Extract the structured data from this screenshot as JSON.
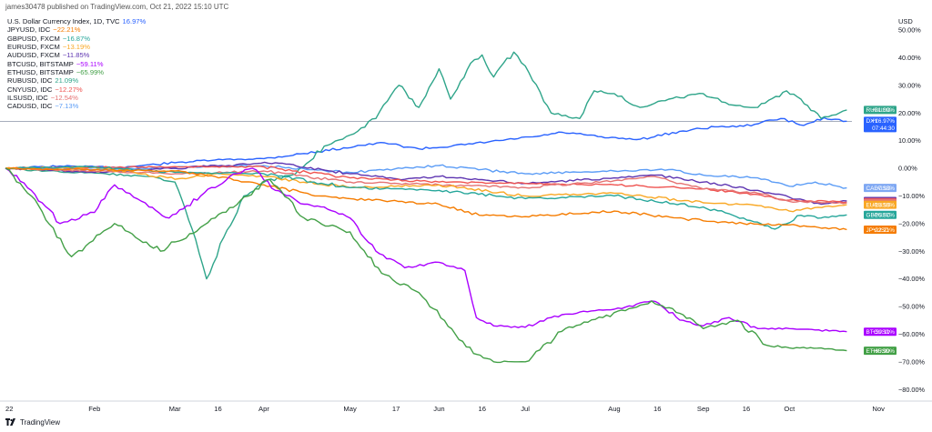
{
  "header": {
    "publish_note": "james30478 published on TradingView.com, Oct 21, 2022 15:10 UTC"
  },
  "footer": {
    "brand": "TradingView"
  },
  "chart_data": {
    "type": "line",
    "title": "",
    "unit_label": "USD",
    "y_axis_side": "right",
    "y_tick_format": "percent",
    "ylim": [
      -85,
      55
    ],
    "y_ticks": [
      50,
      40,
      30,
      20,
      10,
      0,
      -10,
      -20,
      -30,
      -40,
      -50,
      -60,
      -70,
      -80
    ],
    "x_domain": [
      "2022-01-01",
      "2022-10-31"
    ],
    "x_ticks": [
      {
        "label": "22",
        "date": "2022-01-01"
      },
      {
        "label": "Feb",
        "date": "2022-02-01"
      },
      {
        "label": "Mar",
        "date": "2022-03-01"
      },
      {
        "label": "16",
        "date": "2022-03-16"
      },
      {
        "label": "Apr",
        "date": "2022-04-01"
      },
      {
        "label": "May",
        "date": "2022-05-01"
      },
      {
        "label": "17",
        "date": "2022-05-17"
      },
      {
        "label": "Jun",
        "date": "2022-06-01"
      },
      {
        "label": "16",
        "date": "2022-06-16"
      },
      {
        "label": "Jul",
        "date": "2022-07-01"
      },
      {
        "label": "Aug",
        "date": "2022-08-01"
      },
      {
        "label": "16",
        "date": "2022-08-16"
      },
      {
        "label": "Sep",
        "date": "2022-09-01"
      },
      {
        "label": "16",
        "date": "2022-09-16"
      },
      {
        "label": "Oct",
        "date": "2022-10-01"
      },
      {
        "label": "Nov",
        "date": "2022-11-01"
      }
    ],
    "grid": false,
    "legend_position": "top-left",
    "legend": [
      {
        "name": "U.S. Dollar Currency Index, 1D, TVC",
        "value": "16.97%",
        "color": "#2962ff"
      },
      {
        "name": "JPYUSD, IDC",
        "value": "−22.21%",
        "color": "#f57c00"
      },
      {
        "name": "GBPUSD, FXCM",
        "value": "−16.87%",
        "color": "#26a69a"
      },
      {
        "name": "EURUSD, FXCM",
        "value": "−13.19%",
        "color": "#f9a825"
      },
      {
        "name": "AUDUSD, FXCM",
        "value": "−11.85%",
        "color": "#5e35b1"
      },
      {
        "name": "BTCUSD, BITSTAMP",
        "value": "−59.11%",
        "color": "#aa00ff"
      },
      {
        "name": "ETHUSD, BITSTAMP",
        "value": "−65.99%",
        "color": "#43a047"
      },
      {
        "name": "RUBUSD, IDC",
        "value": "21.09%",
        "color": "#2fa58a"
      },
      {
        "name": "CNYUSD, IDC",
        "value": "−12.27%",
        "color": "#ef5350"
      },
      {
        "name": "ILSUSD, IDC",
        "value": "−12.54%",
        "color": "#e57373"
      },
      {
        "name": "CADUSD, IDC",
        "value": "−7.13%",
        "color": "#5b9cf6"
      }
    ],
    "annotations": [
      {
        "type": "horizontal-line",
        "y": 16.97,
        "color": "#8a93a6"
      }
    ],
    "series": [
      {
        "id": "dxy",
        "color": "#2962ff",
        "x": [
          "2022-01-01",
          "2022-01-20",
          "2022-02-10",
          "2022-03-01",
          "2022-03-15",
          "2022-04-01",
          "2022-04-20",
          "2022-05-05",
          "2022-05-13",
          "2022-05-25",
          "2022-06-10",
          "2022-06-22",
          "2022-07-05",
          "2022-07-14",
          "2022-07-30",
          "2022-08-10",
          "2022-08-25",
          "2022-09-05",
          "2022-09-15",
          "2022-09-28",
          "2022-10-06",
          "2022-10-13",
          "2022-10-21"
        ],
        "y": [
          0,
          0.8,
          0.3,
          2.0,
          3.0,
          3.5,
          6.0,
          8.3,
          9.2,
          7.0,
          8.5,
          10.0,
          11.5,
          13.0,
          11.0,
          10.5,
          13.5,
          15.0,
          15.2,
          18.0,
          15.5,
          18.3,
          17.0
        ]
      },
      {
        "id": "rubusd",
        "color": "#2fa58a",
        "x": [
          "2022-01-01",
          "2022-01-15",
          "2022-02-05",
          "2022-02-20",
          "2022-03-01",
          "2022-03-07",
          "2022-03-12",
          "2022-03-18",
          "2022-03-25",
          "2022-04-01",
          "2022-04-12",
          "2022-04-22",
          "2022-05-01",
          "2022-05-10",
          "2022-05-18",
          "2022-05-25",
          "2022-06-01",
          "2022-06-05",
          "2022-06-12",
          "2022-06-16",
          "2022-06-20",
          "2022-06-27",
          "2022-07-01",
          "2022-07-10",
          "2022-07-20",
          "2022-07-25",
          "2022-08-01",
          "2022-08-10",
          "2022-08-20",
          "2022-09-01",
          "2022-09-10",
          "2022-09-20",
          "2022-09-30",
          "2022-10-05",
          "2022-10-12",
          "2022-10-21"
        ],
        "y": [
          0,
          -1.0,
          -2.0,
          -3.0,
          -5.0,
          -22.0,
          -40.0,
          -25.0,
          -10.0,
          -5.0,
          -2.0,
          8.0,
          12.0,
          18.0,
          30.0,
          22.0,
          36.0,
          25.0,
          38.0,
          41.0,
          33.0,
          42.0,
          37.0,
          20.0,
          18.0,
          28.0,
          27.0,
          22.0,
          25.0,
          27.0,
          23.0,
          22.0,
          28.0,
          25.0,
          18.0,
          21.1
        ]
      },
      {
        "id": "cadusd",
        "color": "#5b9cf6",
        "x": [
          "2022-01-01",
          "2022-02-01",
          "2022-03-01",
          "2022-04-01",
          "2022-05-01",
          "2022-06-01",
          "2022-07-01",
          "2022-08-01",
          "2022-08-20",
          "2022-09-01",
          "2022-09-20",
          "2022-10-01",
          "2022-10-10",
          "2022-10-21"
        ],
        "y": [
          0,
          -0.5,
          0.3,
          1.0,
          -1.5,
          1.0,
          -2.0,
          -1.0,
          -0.5,
          -2.5,
          -3.5,
          -6.5,
          -5.0,
          -7.1
        ]
      },
      {
        "id": "audusd",
        "color": "#5e35b1",
        "x": [
          "2022-01-01",
          "2022-02-01",
          "2022-03-01",
          "2022-04-05",
          "2022-05-01",
          "2022-05-20",
          "2022-06-01",
          "2022-07-01",
          "2022-08-01",
          "2022-08-15",
          "2022-09-01",
          "2022-09-20",
          "2022-10-01",
          "2022-10-12",
          "2022-10-21"
        ],
        "y": [
          0,
          -1.5,
          0.0,
          2.0,
          -2.0,
          -4.0,
          -3.0,
          -5.5,
          -3.5,
          -2.5,
          -5.0,
          -8.0,
          -10.5,
          -13.0,
          -11.85
        ]
      },
      {
        "id": "cnyusd",
        "color": "#ef5350",
        "x": [
          "2022-01-01",
          "2022-02-01",
          "2022-03-01",
          "2022-04-01",
          "2022-05-01",
          "2022-06-01",
          "2022-07-01",
          "2022-08-01",
          "2022-09-01",
          "2022-09-20",
          "2022-10-01",
          "2022-10-21"
        ],
        "y": [
          0,
          0.3,
          0.6,
          0.5,
          -3.5,
          -5.0,
          -5.5,
          -6.0,
          -7.5,
          -9.5,
          -11.5,
          -12.27
        ]
      },
      {
        "id": "ilsusd",
        "color": "#e57373",
        "x": [
          "2022-01-01",
          "2022-02-01",
          "2022-03-01",
          "2022-04-01",
          "2022-05-01",
          "2022-06-01",
          "2022-07-01",
          "2022-08-01",
          "2022-08-15",
          "2022-09-01",
          "2022-09-20",
          "2022-10-01",
          "2022-10-21"
        ],
        "y": [
          0,
          -1.0,
          -2.0,
          -1.0,
          -5.0,
          -6.0,
          -7.0,
          -4.5,
          -3.0,
          -7.5,
          -9.0,
          -12.0,
          -12.54
        ]
      },
      {
        "id": "eurusd",
        "color": "#f9a825",
        "x": [
          "2022-01-01",
          "2022-02-01",
          "2022-03-01",
          "2022-03-15",
          "2022-04-01",
          "2022-05-01",
          "2022-06-01",
          "2022-07-01",
          "2022-08-01",
          "2022-09-01",
          "2022-09-20",
          "2022-10-01",
          "2022-10-21"
        ],
        "y": [
          0,
          0.5,
          -4.0,
          -2.0,
          -3.0,
          -7.0,
          -6.0,
          -10.0,
          -9.0,
          -12.5,
          -13.5,
          -15.5,
          -13.19
        ]
      },
      {
        "id": "gbpusd",
        "color": "#26a69a",
        "x": [
          "2022-01-01",
          "2022-02-01",
          "2022-03-01",
          "2022-04-01",
          "2022-05-01",
          "2022-06-01",
          "2022-07-01",
          "2022-08-01",
          "2022-09-01",
          "2022-09-15",
          "2022-09-26",
          "2022-10-05",
          "2022-10-12",
          "2022-10-21"
        ],
        "y": [
          0,
          0.5,
          -1.5,
          -2.0,
          -7.0,
          -8.0,
          -11.0,
          -10.0,
          -14.0,
          -18.0,
          -22.0,
          -17.0,
          -18.0,
          -16.87
        ]
      },
      {
        "id": "jpyusd",
        "color": "#f57c00",
        "x": [
          "2022-01-01",
          "2022-02-01",
          "2022-03-01",
          "2022-03-15",
          "2022-04-01",
          "2022-04-20",
          "2022-05-01",
          "2022-06-01",
          "2022-06-15",
          "2022-07-01",
          "2022-08-01",
          "2022-09-01",
          "2022-09-15",
          "2022-10-01",
          "2022-10-21"
        ],
        "y": [
          0,
          -0.5,
          -1.0,
          -3.0,
          -6.0,
          -10.0,
          -11.0,
          -13.0,
          -17.0,
          -17.5,
          -15.5,
          -19.0,
          -20.0,
          -20.5,
          -22.21
        ]
      },
      {
        "id": "btcusd",
        "color": "#aa00ff",
        "x": [
          "2022-01-01",
          "2022-01-10",
          "2022-01-20",
          "2022-02-01",
          "2022-02-08",
          "2022-02-20",
          "2022-02-27",
          "2022-03-10",
          "2022-03-20",
          "2022-03-28",
          "2022-04-05",
          "2022-04-15",
          "2022-04-22",
          "2022-05-01",
          "2022-05-10",
          "2022-05-20",
          "2022-06-01",
          "2022-06-10",
          "2022-06-14",
          "2022-06-20",
          "2022-07-01",
          "2022-07-10",
          "2022-07-20",
          "2022-08-01",
          "2022-08-14",
          "2022-08-25",
          "2022-09-01",
          "2022-09-10",
          "2022-09-20",
          "2022-10-01",
          "2022-10-10",
          "2022-10-21"
        ],
        "y": [
          0,
          -8.0,
          -20.0,
          -16.0,
          -6.0,
          -14.0,
          -18.0,
          -10.0,
          -3.0,
          0.0,
          -8.0,
          -13.0,
          -14.0,
          -18.0,
          -30.0,
          -36.0,
          -34.0,
          -37.0,
          -54.0,
          -57.0,
          -57.5,
          -54.0,
          -52.0,
          -51.0,
          -48.0,
          -55.0,
          -57.0,
          -54.0,
          -58.0,
          -58.0,
          -58.5,
          -59.11
        ]
      },
      {
        "id": "ethusd",
        "color": "#43a047",
        "x": [
          "2022-01-01",
          "2022-01-10",
          "2022-01-24",
          "2022-02-08",
          "2022-02-24",
          "2022-03-15",
          "2022-04-03",
          "2022-04-15",
          "2022-05-01",
          "2022-05-12",
          "2022-05-25",
          "2022-06-13",
          "2022-06-20",
          "2022-07-01",
          "2022-07-15",
          "2022-07-28",
          "2022-08-14",
          "2022-08-25",
          "2022-09-01",
          "2022-09-13",
          "2022-09-23",
          "2022-10-01",
          "2022-10-12",
          "2022-10-21"
        ],
        "y": [
          0,
          -10.0,
          -32.0,
          -20.0,
          -30.0,
          -18.0,
          -4.0,
          -18.0,
          -23.0,
          -38.0,
          -45.0,
          -67.0,
          -70.0,
          -70.0,
          -58.0,
          -54.0,
          -48.0,
          -53.0,
          -58.0,
          -55.0,
          -64.0,
          -65.0,
          -65.0,
          -65.99
        ]
      }
    ],
    "badges": [
      {
        "label": "RUBUSD",
        "value": "+21.09%",
        "y": 21.09,
        "color": "#2fa58a"
      },
      {
        "label": "DXY",
        "value": "+16.97%",
        "sub": "07:44:30",
        "y": 16.97,
        "color": "#2962ff"
      },
      {
        "label": "CADUSD",
        "value": "−7.13%",
        "y": -7.13,
        "color": "#7fa8f3"
      },
      {
        "label": "AUDUSD",
        "value": "−11.85%",
        "y": -11.85,
        "color": "#5e35b1"
      },
      {
        "label": "CNYUSD",
        "value": "−12.27%",
        "y": -12.27,
        "color": "#ef5350"
      },
      {
        "label": "ILSUSD",
        "value": "−12.54%",
        "y": -12.54,
        "color": "#e57373"
      },
      {
        "label": "EURUSD",
        "value": "−13.19%",
        "y": -13.19,
        "color": "#f9a825"
      },
      {
        "label": "GBPUSD",
        "value": "−16.87%",
        "y": -16.87,
        "color": "#26a69a"
      },
      {
        "label": "JPYUSD",
        "value": "−22.21%",
        "y": -22.21,
        "color": "#f57c00"
      },
      {
        "label": "BTCUSD",
        "value": "−59.11%",
        "y": -59.11,
        "color": "#aa00ff"
      },
      {
        "label": "ETHUSD",
        "value": "−65.99%",
        "y": -65.99,
        "color": "#43a047"
      }
    ]
  }
}
